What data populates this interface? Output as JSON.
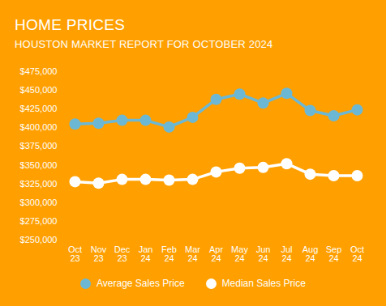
{
  "chart_data": {
    "type": "line",
    "title": "HOME PRICES",
    "subtitle": "HOUSTON MARKET REPORT FOR OCTOBER 2024",
    "categories": [
      "Oct 23",
      "Nov 23",
      "Dec 23",
      "Jan 24",
      "Feb 24",
      "Mar 24",
      "Apr 24",
      "May 24",
      "Jun 24",
      "Jul 24",
      "Aug 24",
      "Sep 24",
      "Oct 24"
    ],
    "series": [
      {
        "name": "Average Sales Price",
        "color": "#6cb8d4",
        "values": [
          405000,
          406000,
          410000,
          410000,
          401000,
          414000,
          438000,
          445000,
          433000,
          446000,
          423000,
          416000,
          424000
        ]
      },
      {
        "name": "Median Sales Price",
        "color": "#ffffff",
        "values": [
          328000,
          326000,
          331000,
          331000,
          330000,
          331000,
          341000,
          346000,
          347000,
          352000,
          338000,
          336000,
          336000
        ]
      }
    ],
    "ylim": [
      250000,
      475000
    ],
    "yticks": [
      {
        "value": 250000,
        "label": "$250,000"
      },
      {
        "value": 275000,
        "label": "$275,000"
      },
      {
        "value": 300000,
        "label": "$300,000"
      },
      {
        "value": 325000,
        "label": "$325,000"
      },
      {
        "value": 350000,
        "label": "$350,000"
      },
      {
        "value": 375000,
        "label": "$375,000"
      },
      {
        "value": 400000,
        "label": "$400,000"
      },
      {
        "value": 425000,
        "label": "$425,000"
      },
      {
        "value": 450000,
        "label": "$450,000"
      },
      {
        "value": 475000,
        "label": "$475,000"
      }
    ],
    "grid": false,
    "legend": "bottom",
    "marker": "circle"
  }
}
